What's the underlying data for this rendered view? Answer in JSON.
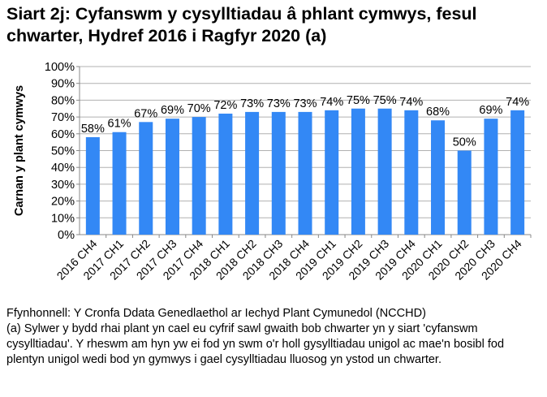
{
  "chart_data": {
    "type": "bar",
    "title": "Siart 2j: Cyfanswm y cysylltiadau â phlant cymwys, fesul chwarter, Hydref 2016 i Ragfyr 2020 (a)",
    "xlabel": "",
    "ylabel": "Carnan y plant cymwys",
    "ylim": [
      0,
      100
    ],
    "yticks": [
      "0%",
      "10%",
      "20%",
      "30%",
      "40%",
      "50%",
      "60%",
      "70%",
      "80%",
      "90%",
      "100%"
    ],
    "grid": true,
    "categories": [
      "2016 CH4",
      "2017 CH1",
      "2017 CH2",
      "2017 CH3",
      "2017 CH4",
      "2018 CH1",
      "2018 CH2",
      "2018 CH3",
      "2018 CH4",
      "2019 CH1",
      "2019 CH2",
      "2019 CH3",
      "2019 CH4",
      "2020 CH1",
      "2020 CH2",
      "2020 CH3",
      "2020 CH4"
    ],
    "values": [
      58,
      61,
      67,
      69,
      70,
      72,
      73,
      73,
      73,
      74,
      75,
      75,
      74,
      68,
      50,
      69,
      74
    ],
    "data_labels": [
      "58%",
      "61%",
      "67%",
      "69%",
      "70%",
      "72%",
      "73%",
      "73%",
      "73%",
      "74%",
      "75%",
      "75%",
      "74%",
      "68%",
      "50%",
      "69%",
      "74%"
    ],
    "bar_color": "#3388f5"
  },
  "notes": {
    "source": "Ffynhonnell: Y Cronfa Ddata Genedlaethol ar Iechyd Plant Cymunedol (NCCHD)",
    "footnote": "(a) Sylwer y bydd rhai plant yn cael eu cyfrif sawl gwaith bob chwarter yn y siart 'cyfanswm cysylltiadau'. Y rheswm am hyn yw ei fod yn swm o'r holl gysylltiadau unigol ac mae'n bosibl fod plentyn unigol wedi bod yn gymwys i gael cysylltiadau lluosog yn ystod un chwarter."
  }
}
